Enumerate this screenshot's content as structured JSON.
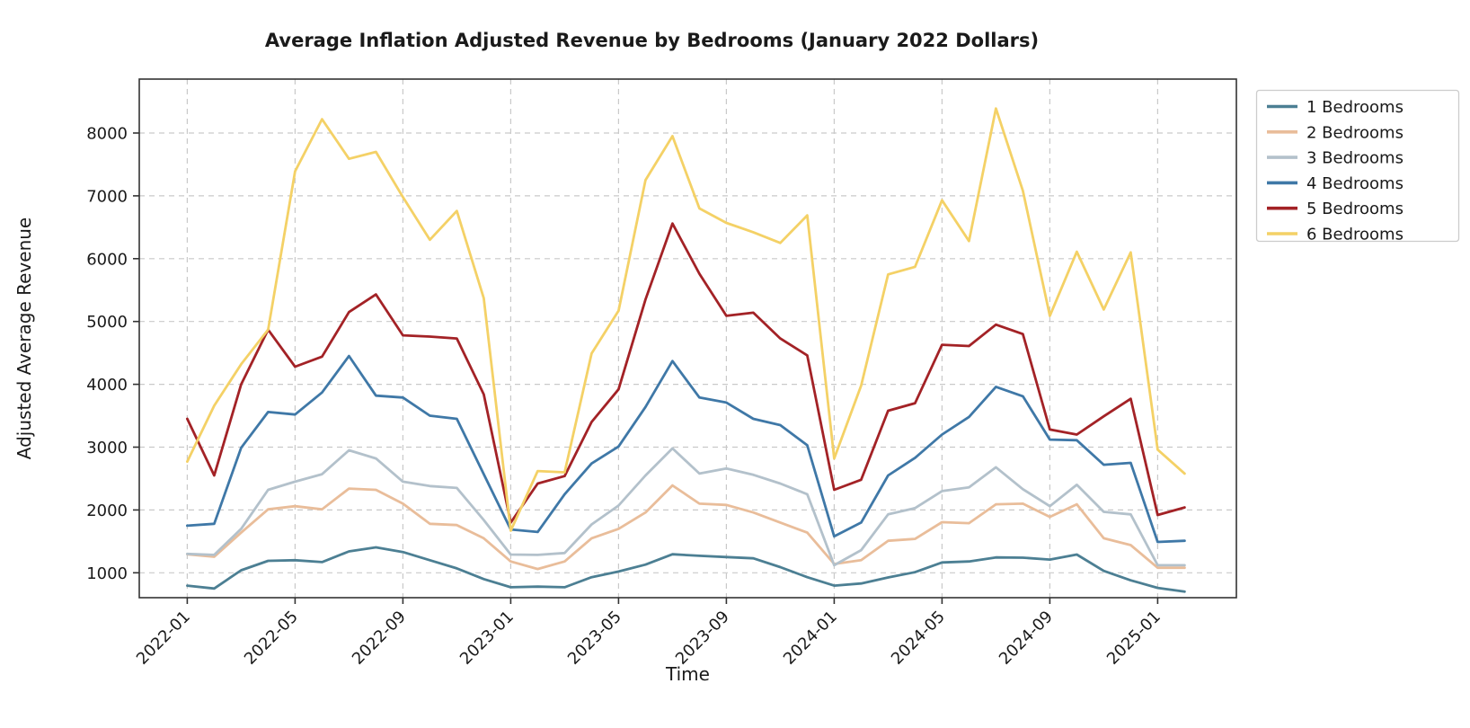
{
  "chart_data": {
    "type": "line",
    "title": "Average Inflation Adjusted Revenue by Bedrooms (January 2022 Dollars)",
    "xlabel": "Time",
    "ylabel": "Adjusted Average Revenue",
    "grid": true,
    "grid_style": "dashed",
    "legend_position": "outside-right",
    "ylim": [
      600,
      8880
    ],
    "y_ticks": [
      1000,
      2000,
      3000,
      4000,
      5000,
      6000,
      7000,
      8000
    ],
    "x": [
      "2022-01",
      "2022-02",
      "2022-03",
      "2022-04",
      "2022-05",
      "2022-06",
      "2022-07",
      "2022-08",
      "2022-09",
      "2022-10",
      "2022-11",
      "2022-12",
      "2023-01",
      "2023-02",
      "2023-03",
      "2023-04",
      "2023-05",
      "2023-06",
      "2023-07",
      "2023-08",
      "2023-09",
      "2023-10",
      "2023-11",
      "2023-12",
      "2024-01",
      "2024-02",
      "2024-03",
      "2024-04",
      "2024-05",
      "2024-06",
      "2024-07",
      "2024-08",
      "2024-09",
      "2024-10",
      "2024-11",
      "2024-12",
      "2025-01",
      "2025-02"
    ],
    "x_tick_labels": [
      "2022-01",
      "2022-05",
      "2022-09",
      "2023-01",
      "2023-05",
      "2023-09",
      "2024-01",
      "2024-05",
      "2024-09",
      "2025-01"
    ],
    "x_tick_indices": [
      0,
      4,
      8,
      12,
      16,
      20,
      24,
      28,
      32,
      36
    ],
    "series": [
      {
        "name": "1 Bedrooms",
        "color": "#4c7f93",
        "values": [
          795,
          750,
          1040,
          1190,
          1200,
          1170,
          1340,
          1405,
          1330,
          1200,
          1070,
          900,
          770,
          780,
          770,
          930,
          1020,
          1130,
          1295,
          1270,
          1250,
          1230,
          1090,
          930,
          795,
          830,
          925,
          1010,
          1165,
          1180,
          1245,
          1240,
          1210,
          1290,
          1030,
          880,
          760,
          700
        ]
      },
      {
        "name": "2 Bedrooms",
        "color": "#e9bd9a",
        "values": [
          1295,
          1255,
          1640,
          2010,
          2060,
          2010,
          2340,
          2320,
          2100,
          1780,
          1760,
          1550,
          1180,
          1060,
          1180,
          1550,
          1700,
          1960,
          2390,
          2100,
          2080,
          1960,
          1800,
          1640,
          1140,
          1200,
          1510,
          1540,
          1805,
          1790,
          2090,
          2100,
          1890,
          2090,
          1550,
          1440,
          1080,
          1080
        ]
      },
      {
        "name": "3 Bedrooms",
        "color": "#b3c1cb",
        "values": [
          1300,
          1285,
          1700,
          2320,
          2450,
          2570,
          2950,
          2820,
          2450,
          2380,
          2350,
          1840,
          1290,
          1285,
          1315,
          1770,
          2070,
          2550,
          2980,
          2580,
          2660,
          2560,
          2420,
          2250,
          1120,
          1360,
          1930,
          2030,
          2300,
          2360,
          2680,
          2330,
          2060,
          2400,
          1970,
          1930,
          1120,
          1120
        ]
      },
      {
        "name": "4 Bedrooms",
        "color": "#3f78a7",
        "values": [
          1750,
          1780,
          2990,
          3560,
          3520,
          3870,
          4450,
          3820,
          3790,
          3500,
          3450,
          2570,
          1690,
          1650,
          2250,
          2740,
          3010,
          3640,
          4370,
          3790,
          3710,
          3450,
          3350,
          3030,
          1580,
          1800,
          2550,
          2830,
          3200,
          3480,
          3960,
          3810,
          3120,
          3110,
          2720,
          2750,
          1490,
          1510
        ]
      },
      {
        "name": "5 Bedrooms",
        "color": "#a32226",
        "values": [
          3450,
          2550,
          4000,
          4870,
          4280,
          4440,
          5150,
          5430,
          4780,
          4760,
          4730,
          3840,
          1800,
          2420,
          2540,
          3400,
          3920,
          5350,
          6560,
          5760,
          5090,
          5140,
          4730,
          4460,
          2320,
          2480,
          3580,
          3700,
          4630,
          4610,
          4950,
          4800,
          3280,
          3200,
          3490,
          3770,
          1920,
          2040
        ]
      },
      {
        "name": "6 Bedrooms",
        "color": "#f4d166",
        "values": [
          2770,
          3660,
          4320,
          4870,
          7390,
          8220,
          7590,
          7700,
          6980,
          6300,
          6760,
          5370,
          1670,
          2620,
          2600,
          4490,
          5170,
          7250,
          7950,
          6800,
          6570,
          6420,
          6250,
          6690,
          2820,
          3980,
          5750,
          5870,
          6930,
          6280,
          8390,
          7080,
          5090,
          6110,
          5190,
          6100,
          2960,
          2580
        ]
      }
    ],
    "colors": {
      "grid": "#c9c9c9",
      "spine": "#333333",
      "text": "#1a1a1a",
      "legend_border": "#cccccc"
    }
  }
}
